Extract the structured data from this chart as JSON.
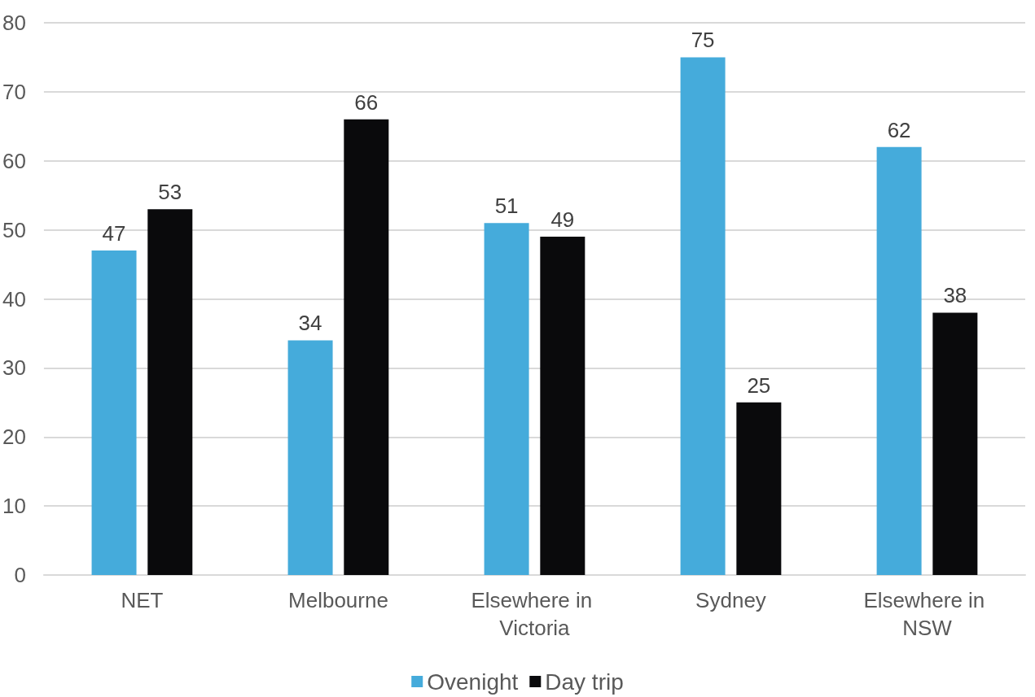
{
  "chart_data": {
    "type": "bar",
    "categories": [
      "NET",
      "Melbourne",
      "Elsewhere in Victoria",
      "Sydney",
      "Elsewhere in NSW"
    ],
    "series": [
      {
        "name": "Ovenight",
        "color": "#45abdb",
        "values": [
          47,
          34,
          51,
          75,
          62
        ]
      },
      {
        "name": "Day trip",
        "color": "#0a0a0c",
        "values": [
          53,
          66,
          49,
          25,
          38
        ]
      }
    ],
    "ylim": [
      0,
      80
    ],
    "yticks": [
      0,
      10,
      20,
      30,
      40,
      50,
      60,
      70,
      80
    ],
    "grid": "y",
    "legend": "bottom",
    "data_labels": true
  }
}
